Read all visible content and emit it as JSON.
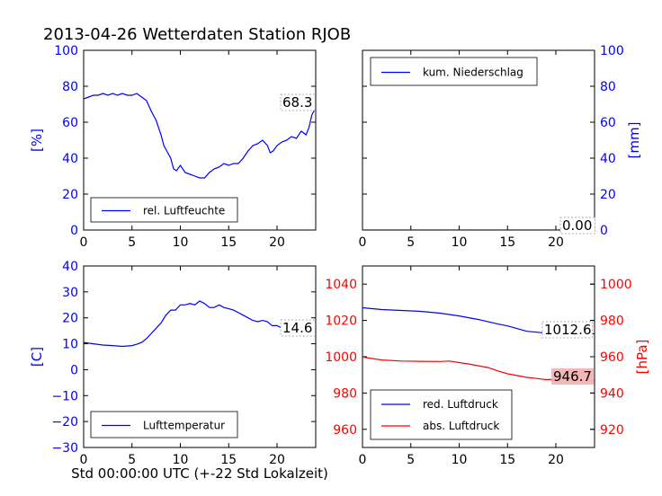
{
  "figure": {
    "title": "2013-04-26 Wetterdaten Station RJOB",
    "xlabel": "Std 00:00:00 UTC (+-22 Std Lokalzeit)"
  },
  "chart_data": [
    {
      "id": "humidity",
      "type": "line",
      "ylabel": "[%]",
      "ylabel_color": "#0000ff",
      "ylim": [
        0,
        100
      ],
      "yticks": [
        0,
        20,
        40,
        60,
        80,
        100
      ],
      "ytick_labels": [
        "0",
        "20",
        "40",
        "60",
        "80",
        "100"
      ],
      "xlim": [
        0,
        24
      ],
      "xticks": [
        0,
        5,
        10,
        15,
        20
      ],
      "xtick_labels": [
        "0",
        "5",
        "10",
        "15",
        "20"
      ],
      "legend": "bottom-left",
      "last_value_label": "68.3",
      "series": [
        {
          "name": "rel. Luftfeuchte",
          "color": "#0000ff",
          "x": [
            0,
            0.5,
            1,
            1.5,
            2,
            2.5,
            3,
            3.5,
            4,
            4.5,
            5,
            5.5,
            6,
            6.5,
            7,
            7.5,
            8,
            8.3,
            8.6,
            9,
            9.3,
            9.6,
            10,
            10.5,
            11,
            11.5,
            12,
            12.5,
            13,
            13.5,
            14,
            14.5,
            15,
            15.5,
            16,
            16.5,
            17,
            17.5,
            18,
            18.5,
            19,
            19.3,
            19.6,
            20,
            20.5,
            21,
            21.5,
            22,
            22.5,
            23,
            23.3,
            23.6,
            24
          ],
          "y": [
            73,
            74,
            75,
            75,
            76,
            75,
            76,
            75,
            76,
            75,
            75,
            76,
            74,
            72,
            66,
            61,
            53,
            47,
            44,
            40,
            34,
            33,
            36,
            32,
            31,
            30,
            29,
            29,
            32,
            34,
            35,
            37,
            36,
            37,
            37,
            40,
            44,
            47,
            48,
            50,
            47,
            43,
            44,
            47,
            49,
            50,
            52,
            51,
            55,
            53,
            57,
            64,
            68
          ]
        }
      ]
    },
    {
      "id": "precipitation",
      "type": "line",
      "ylabel": "[mm]",
      "ylabel_color": "#0000ff",
      "ylim": [
        0,
        100
      ],
      "yticks": [
        0,
        20,
        40,
        60,
        80,
        100
      ],
      "ytick_labels": [
        "0",
        "20",
        "40",
        "60",
        "80",
        "100"
      ],
      "y_axis_side": "right",
      "xlim": [
        0,
        24
      ],
      "xticks": [
        0,
        5,
        10,
        15,
        20
      ],
      "xtick_labels": [
        "0",
        "5",
        "10",
        "15",
        "20"
      ],
      "legend": "top-left",
      "last_value_label": "0.00",
      "series": [
        {
          "name": "kum. Niederschlag",
          "color": "#0000ff",
          "x": [
            0,
            24
          ],
          "y": [
            0,
            0
          ]
        }
      ]
    },
    {
      "id": "temperature",
      "type": "line",
      "ylabel": "[C]",
      "ylabel_color": "#0000ff",
      "ylim": [
        -30,
        40
      ],
      "yticks": [
        -30,
        -20,
        -10,
        0,
        10,
        20,
        30,
        40
      ],
      "ytick_labels": [
        "−30",
        "−20",
        "−10",
        "0",
        "10",
        "20",
        "30",
        "40"
      ],
      "xlim": [
        0,
        24
      ],
      "xticks": [
        0,
        5,
        10,
        15,
        20
      ],
      "xtick_labels": [
        "0",
        "5",
        "10",
        "15",
        "20"
      ],
      "legend": "bottom-left",
      "last_value_label": "14.6",
      "series": [
        {
          "name": "Lufttemperatur",
          "color": "#0000ff",
          "x": [
            0,
            1,
            2,
            3,
            4,
            5,
            5.5,
            6,
            6.5,
            7,
            7.5,
            8,
            8.5,
            9,
            9.5,
            10,
            10.5,
            11,
            11.5,
            12,
            12.5,
            13,
            13.5,
            14,
            14.5,
            15,
            15.5,
            16,
            16.5,
            17,
            17.5,
            18,
            18.5,
            19,
            19.5,
            20,
            20.5,
            21,
            21.5,
            22,
            22.5,
            23,
            23.5,
            24
          ],
          "y": [
            10.5,
            10,
            9.5,
            9.3,
            9,
            9.3,
            9.8,
            10.5,
            12,
            14,
            16,
            18,
            21,
            23,
            23,
            25,
            25,
            25.5,
            25,
            26.5,
            25.5,
            24,
            24,
            25,
            24,
            23.5,
            23,
            22,
            21,
            20,
            19,
            18.5,
            19,
            18.5,
            17,
            17,
            16,
            16,
            15.5,
            15,
            15,
            14.8,
            14.6,
            14.6
          ]
        }
      ]
    },
    {
      "id": "pressure",
      "type": "line",
      "ylabel": "[hPa]",
      "ylabel_color": "#ff0000",
      "ylim": [
        950,
        1050
      ],
      "yticks": [
        960,
        980,
        1000,
        1020,
        1040
      ],
      "ytick_labels": [
        "960",
        "980",
        "1000",
        "1020",
        "1040"
      ],
      "y2lim": [
        910,
        1010
      ],
      "y2ticks": [
        920,
        940,
        960,
        980,
        1000
      ],
      "y2tick_labels": [
        "920",
        "940",
        "960",
        "980",
        "1000"
      ],
      "y2_color": "#ff0000",
      "xlim": [
        0,
        24
      ],
      "xticks": [
        0,
        5,
        10,
        15,
        20
      ],
      "xtick_labels": [
        "0",
        "5",
        "10",
        "15",
        "20"
      ],
      "legend": "bottom-left",
      "last_value_labels": [
        "1012.6",
        "946.7"
      ],
      "series": [
        {
          "name": "red. Luftdruck",
          "color": "#0000ff",
          "axis": "left",
          "x": [
            0,
            2,
            4,
            6,
            8,
            10,
            12,
            14,
            15,
            16,
            17,
            18,
            19,
            20,
            21,
            22,
            23,
            24
          ],
          "y": [
            1027,
            1026,
            1025.5,
            1025,
            1024,
            1022.5,
            1020.5,
            1018,
            1017,
            1015.5,
            1014,
            1013.5,
            1013,
            1013.2,
            1013,
            1012.8,
            1012.7,
            1012.6
          ]
        },
        {
          "name": "abs. Luftdruck",
          "color": "#ff0000",
          "axis": "right",
          "x": [
            0,
            1,
            2,
            4,
            6,
            8,
            9,
            10,
            11,
            12,
            13,
            14,
            15,
            16,
            17,
            18,
            19,
            20,
            21,
            22,
            23,
            24
          ],
          "y": [
            959.8,
            959,
            958.2,
            957.6,
            957.5,
            957.4,
            957.6,
            956.8,
            956,
            955,
            954,
            952.2,
            950.6,
            949.6,
            948.6,
            948,
            947.4,
            947.6,
            947.2,
            946.9,
            946.8,
            946.7
          ]
        }
      ]
    }
  ]
}
